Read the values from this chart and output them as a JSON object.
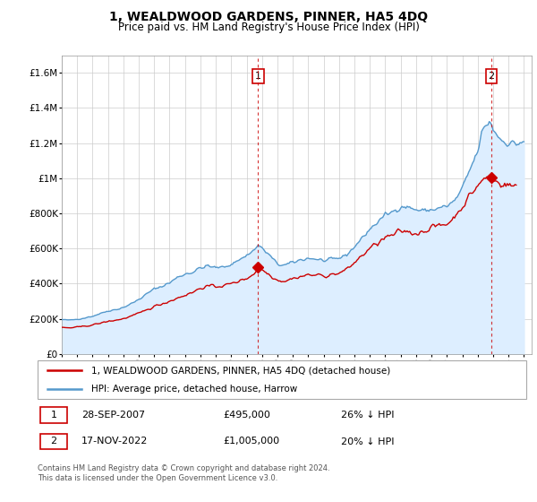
{
  "title": "1, WEALDWOOD GARDENS, PINNER, HA5 4DQ",
  "subtitle": "Price paid vs. HM Land Registry's House Price Index (HPI)",
  "legend_line1": "1, WEALDWOOD GARDENS, PINNER, HA5 4DQ (detached house)",
  "legend_line2": "HPI: Average price, detached house, Harrow",
  "sale1_date_label": "28-SEP-2007",
  "sale1_price_label": "£495,000",
  "sale1_hpi_label": "26% ↓ HPI",
  "sale1_year": 2007.75,
  "sale1_value": 495000,
  "sale2_date_label": "17-NOV-2022",
  "sale2_price_label": "£1,005,000",
  "sale2_hpi_label": "20% ↓ HPI",
  "sale2_year": 2022.88,
  "sale2_value": 1005000,
  "footer1": "Contains HM Land Registry data © Crown copyright and database right 2024.",
  "footer2": "This data is licensed under the Open Government Licence v3.0.",
  "red_color": "#cc0000",
  "blue_color": "#5599cc",
  "fill_color": "#ddeeff",
  "grid_color": "#cccccc",
  "xlim_min": 1995.0,
  "xlim_max": 2025.5,
  "ylim_min": 0,
  "ylim_max": 1700000
}
